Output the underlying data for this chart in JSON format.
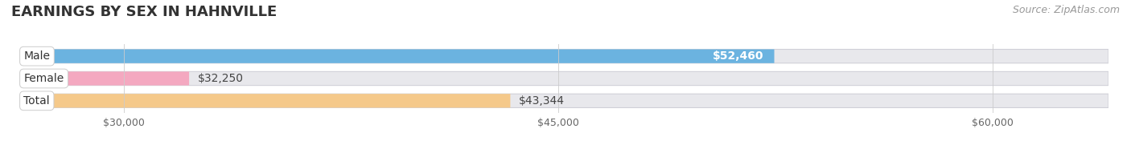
{
  "title": "EARNINGS BY SEX IN HAHNVILLE",
  "source": "Source: ZipAtlas.com",
  "categories": [
    "Male",
    "Female",
    "Total"
  ],
  "values": [
    52460,
    32250,
    43344
  ],
  "bar_colors": [
    "#6bb3e0",
    "#f4a8c0",
    "#f5c98a"
  ],
  "value_labels": [
    "$52,460",
    "$32,250",
    "$43,344"
  ],
  "value_label_inside": [
    true,
    false,
    false
  ],
  "xlim_min": 26500,
  "xlim_max": 64000,
  "xticks": [
    30000,
    45000,
    60000
  ],
  "xtick_labels": [
    "$30,000",
    "$45,000",
    "$60,000"
  ],
  "background_color": "#ffffff",
  "bar_background_color": "#e8e8ec",
  "bar_border_color": "#d0d0d8",
  "bar_height": 0.62,
  "title_fontsize": 13,
  "label_fontsize": 10,
  "tick_fontsize": 9,
  "source_fontsize": 9
}
